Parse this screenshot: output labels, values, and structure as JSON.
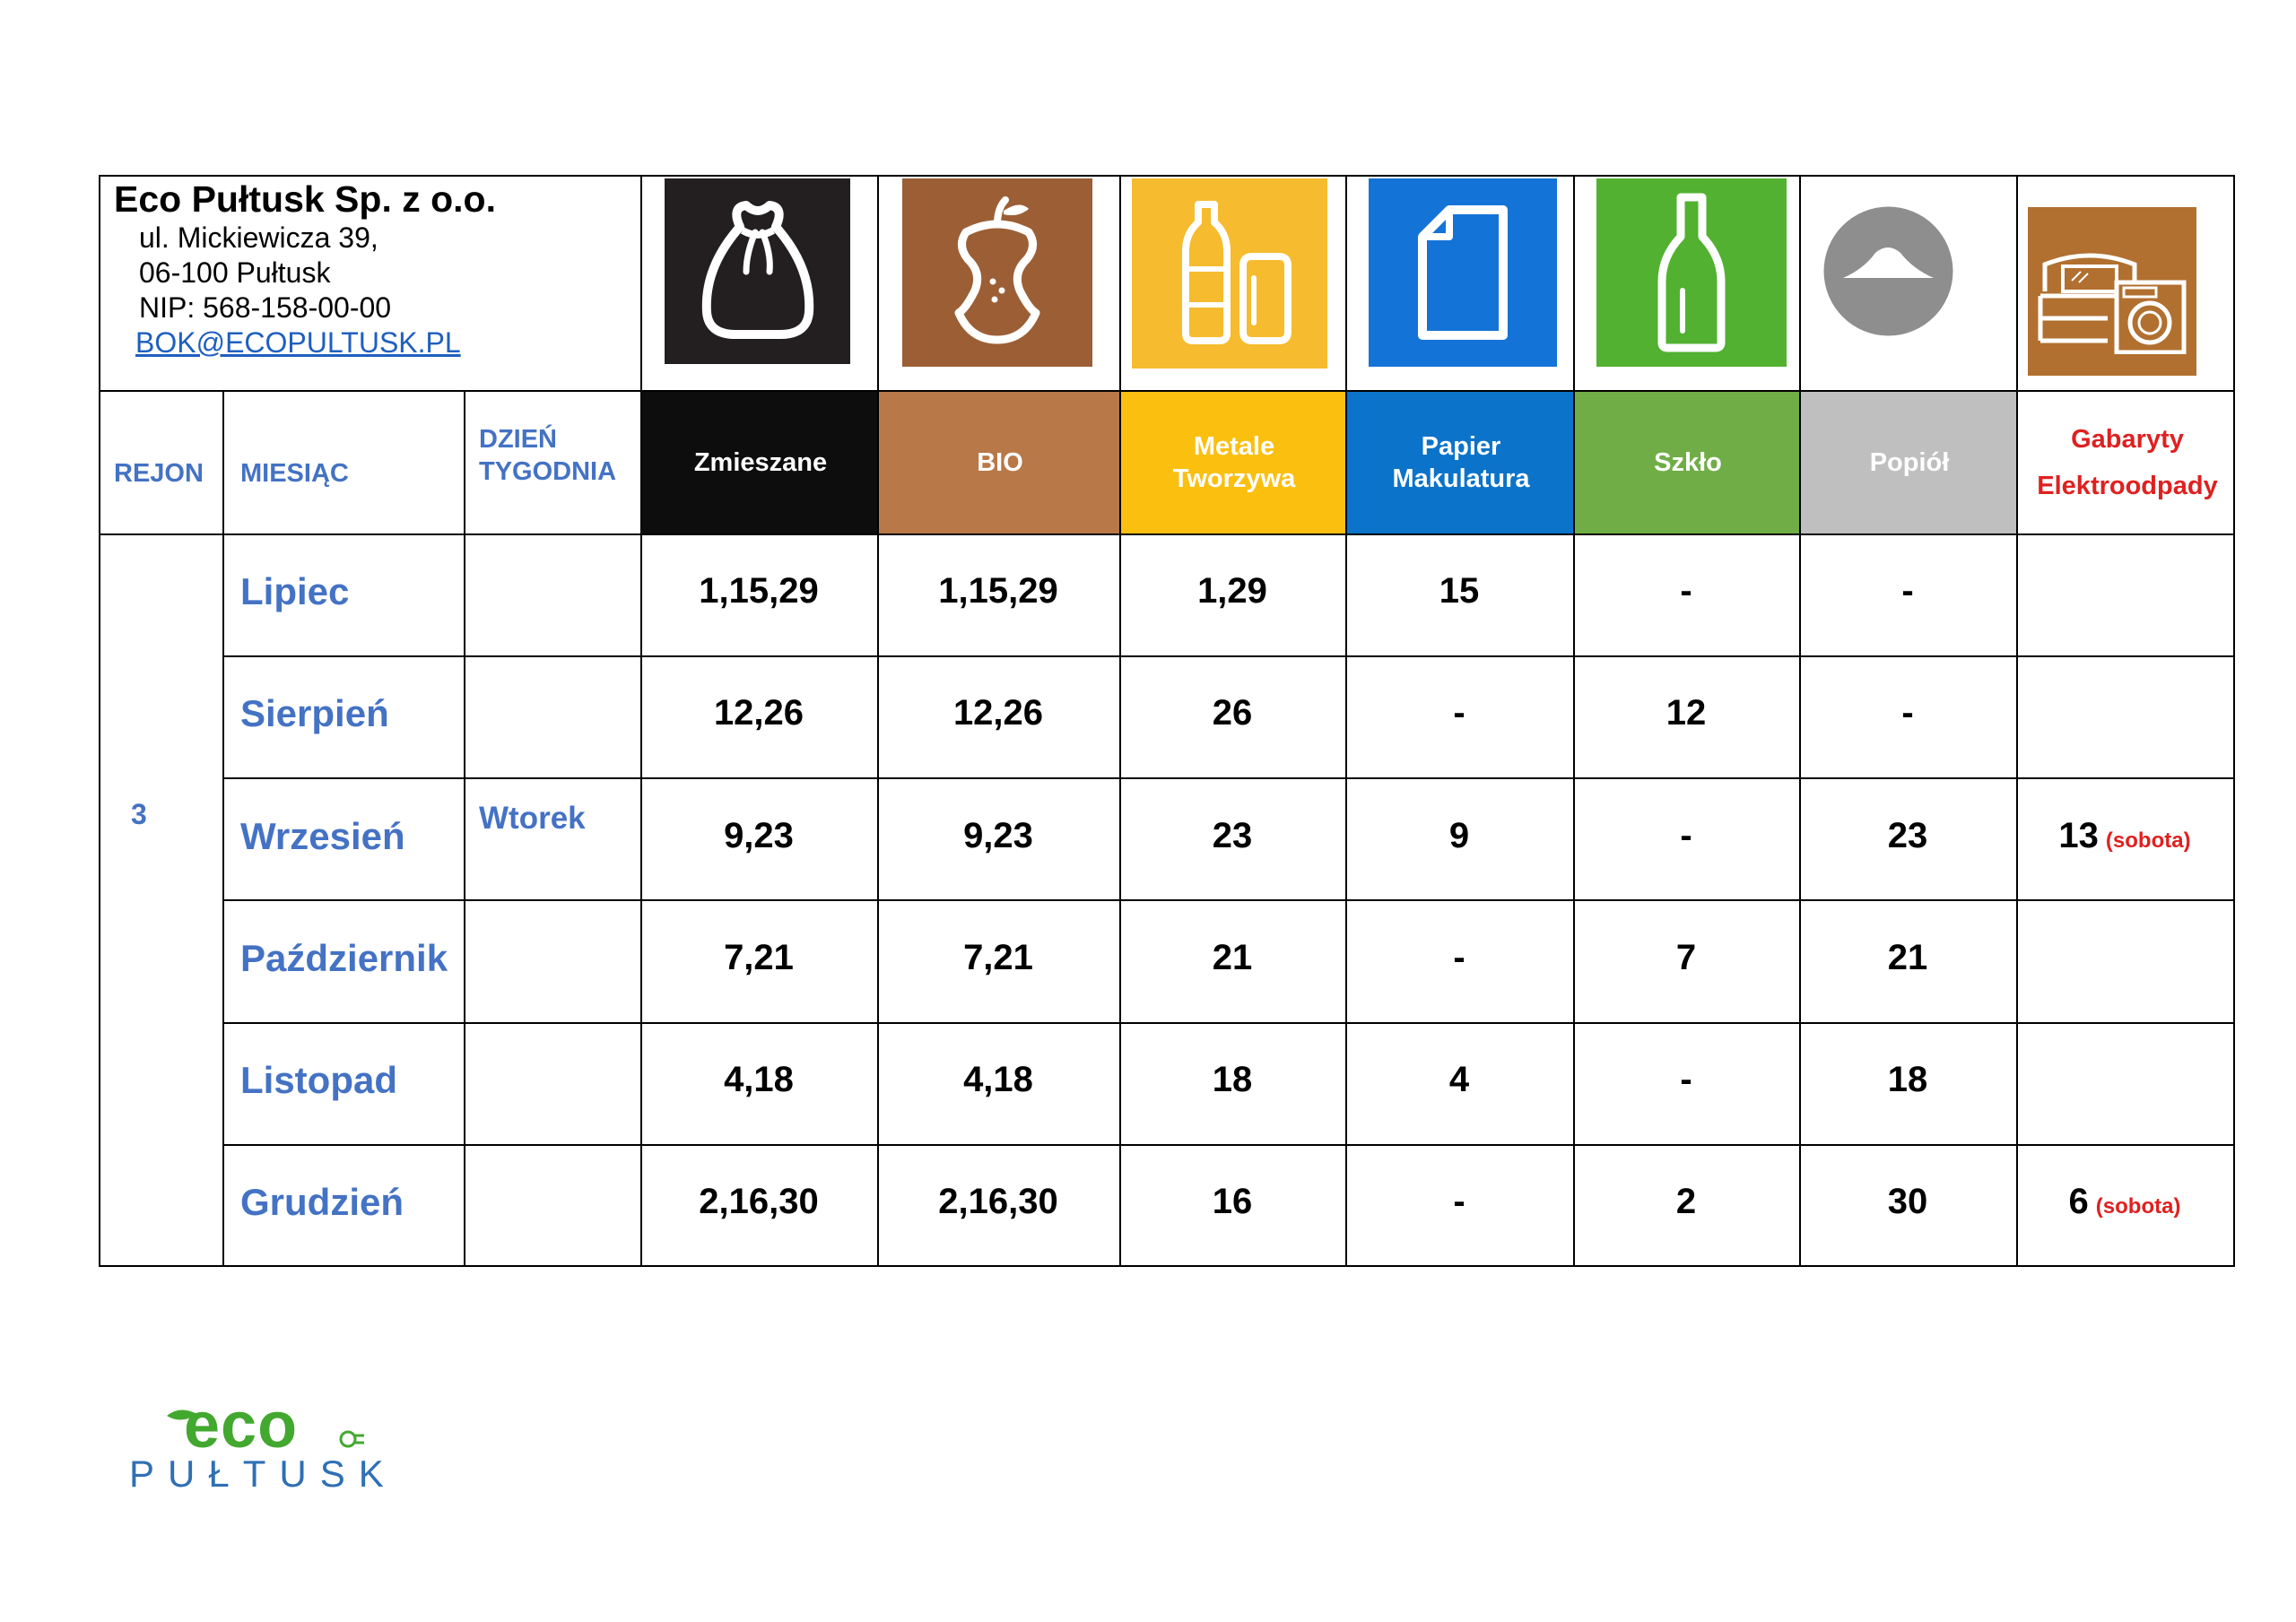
{
  "company": {
    "name": "Eco Pułtusk Sp. z o.o.",
    "street": "ul. Mickiewicza 39,",
    "city": "06-100 Pułtusk",
    "nip": "NIP: 568-158-00-00",
    "email": "BOK@ECOPULTUSK.PL"
  },
  "headers": {
    "region": "REJON",
    "month": "MIESIĄC",
    "day_line1": "DZIEŃ",
    "day_line2": "TYGODNIA"
  },
  "fractions": [
    {
      "line1": "Zmieszane",
      "line2": "",
      "color": "#0d0d0d",
      "icon": "trash-bag-icon"
    },
    {
      "line1": "BIO",
      "line2": "",
      "color": "#b87848",
      "icon": "apple-core-icon"
    },
    {
      "line1": "Metale",
      "line2": "Tworzywa",
      "color": "#fbbf10",
      "icon": "bottle-and-can-icon"
    },
    {
      "line1": "Papier",
      "line2": "Makulatura",
      "color": "#0b73c9",
      "icon": "paper-sheet-icon"
    },
    {
      "line1": "Szkło",
      "line2": "",
      "color": "#70ad47",
      "icon": "glass-bottle-icon"
    },
    {
      "line1": "Popiół",
      "line2": "",
      "color": "#bfbfbf",
      "icon": "ash-pile-icon"
    },
    {
      "line1": "Gabaryty",
      "line2": "Elektroodpady",
      "color": "#ffffff",
      "text_color": "#e02020",
      "icon": "furniture-and-washer-icon"
    }
  ],
  "region": "3",
  "weekday": "Wtorek",
  "rows": [
    {
      "month": "Lipiec",
      "values": [
        "1,15,29",
        "1,15,29",
        "1,29",
        "15",
        "-",
        "-",
        ""
      ],
      "note": ""
    },
    {
      "month": "Sierpień",
      "values": [
        "12,26",
        "12,26",
        "26",
        "-",
        "12",
        "-",
        ""
      ],
      "note": ""
    },
    {
      "month": "Wrzesień",
      "values": [
        "9,23",
        "9,23",
        "23",
        "9",
        "-",
        "23",
        "13"
      ],
      "note": "(sobota)"
    },
    {
      "month": "Październik",
      "values": [
        "7,21",
        "7,21",
        "21",
        "-",
        "7",
        "21",
        ""
      ],
      "note": ""
    },
    {
      "month": "Listopad",
      "values": [
        "4,18",
        "4,18",
        "18",
        "4",
        "-",
        "18",
        ""
      ],
      "note": ""
    },
    {
      "month": "Grudzień",
      "values": [
        "2,16,30",
        "2,16,30",
        "16",
        "-",
        "2",
        "30",
        "6"
      ],
      "note": "(sobota)"
    }
  ],
  "logo": {
    "eco": "eco",
    "city": "PUŁTUSK"
  }
}
